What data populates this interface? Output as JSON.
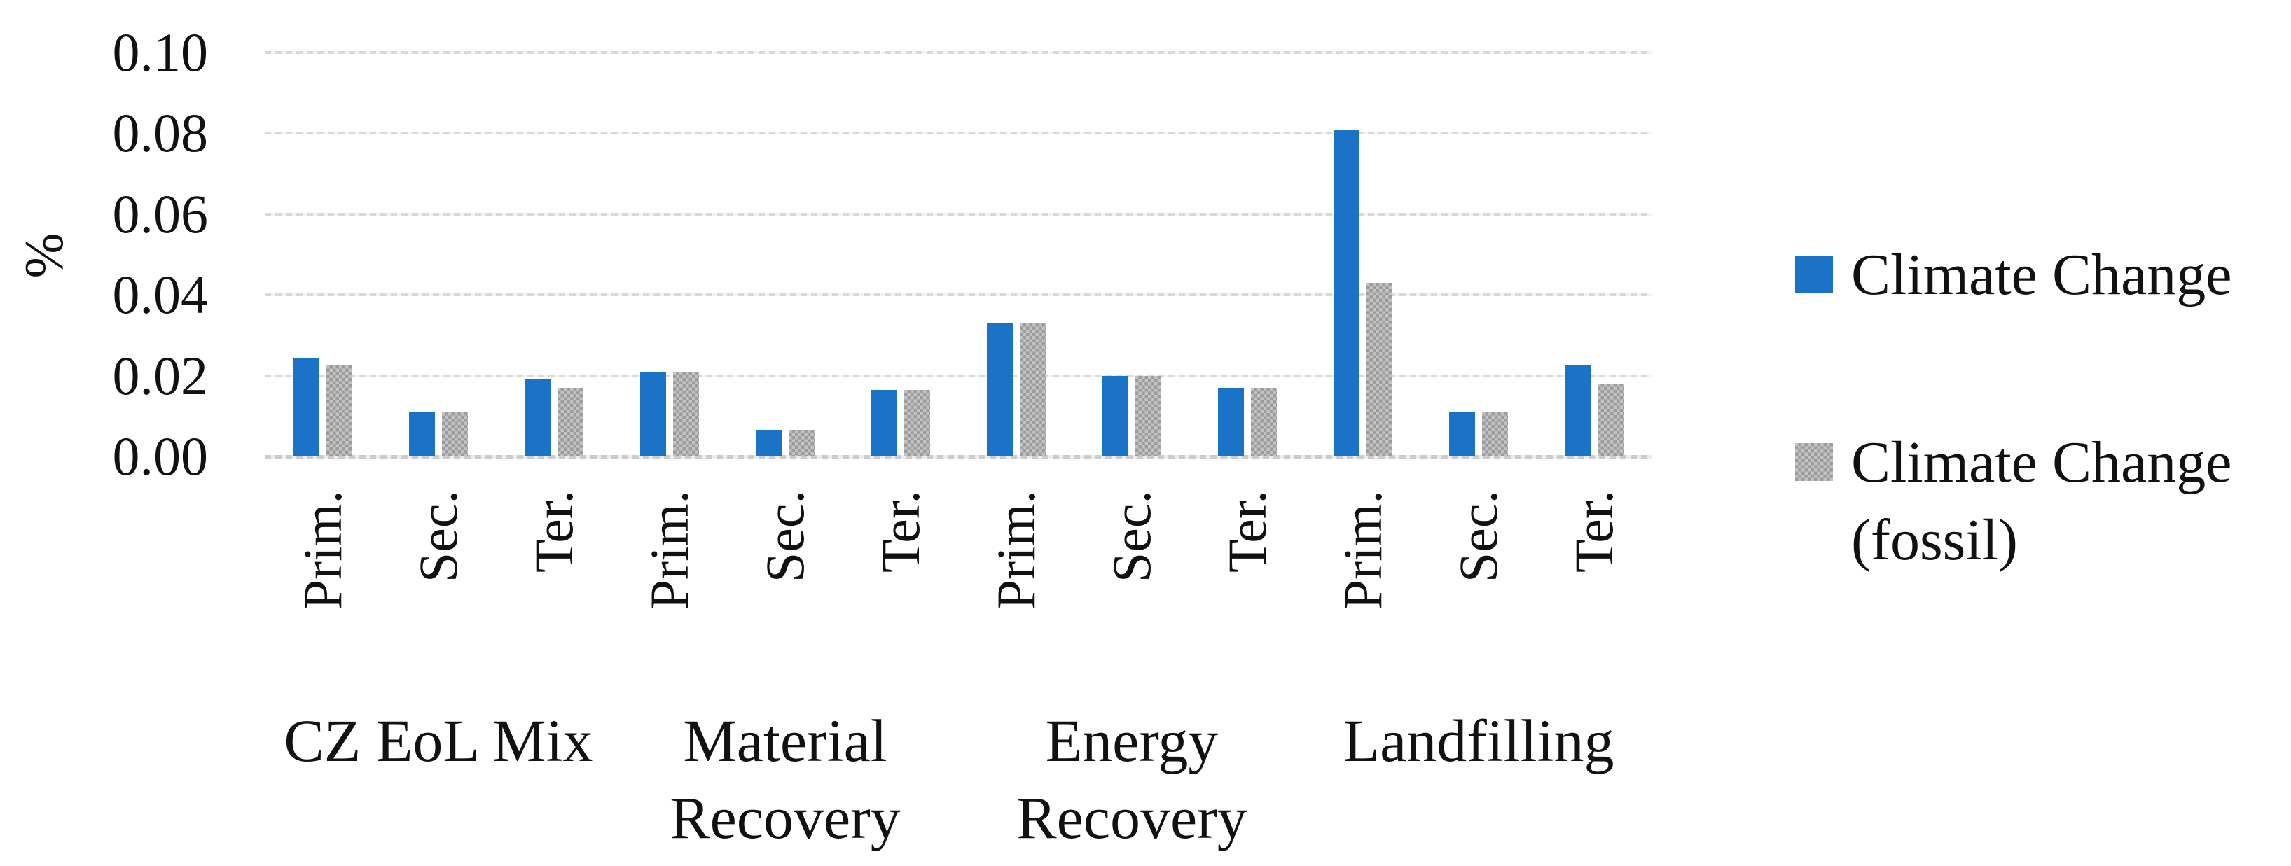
{
  "chart_data": {
    "type": "bar",
    "title": "",
    "xlabel": "",
    "ylabel": "%",
    "ylim": [
      0,
      0.1
    ],
    "ytick_step": 0.02,
    "yticks": [
      "0.00",
      "0.02",
      "0.04",
      "0.06",
      "0.08",
      "0.10"
    ],
    "grid": true,
    "legend_position": "right",
    "subcategories": [
      "Prim.",
      "Sec.",
      "Ter."
    ],
    "groups": [
      {
        "label": "CZ EoL Mix",
        "label_lines": [
          "CZ EoL Mix"
        ]
      },
      {
        "label": "Material Recovery",
        "label_lines": [
          "Material",
          "Recovery"
        ]
      },
      {
        "label": "Energy Recovery",
        "label_lines": [
          "Energy",
          "Recovery"
        ]
      },
      {
        "label": "Landfilling",
        "label_lines": [
          "Landfilling"
        ]
      }
    ],
    "series": [
      {
        "name": "Climate Change",
        "color": "#1b73c7",
        "pattern": "solid",
        "values": [
          0.0245,
          0.011,
          0.019,
          0.021,
          0.0065,
          0.0165,
          0.033,
          0.02,
          0.017,
          0.081,
          0.011,
          0.0225
        ]
      },
      {
        "name": "Climate Change (fossil)",
        "color": "#a6a6a6",
        "pattern": "gray-checker",
        "values": [
          0.0225,
          0.011,
          0.017,
          0.021,
          0.0065,
          0.0165,
          0.033,
          0.02,
          0.017,
          0.043,
          0.011,
          0.018
        ]
      }
    ],
    "legend": [
      {
        "series": 0,
        "lines": [
          "Climate Change"
        ]
      },
      {
        "series": 1,
        "lines": [
          "Climate Change",
          "(fossil)"
        ]
      }
    ]
  }
}
